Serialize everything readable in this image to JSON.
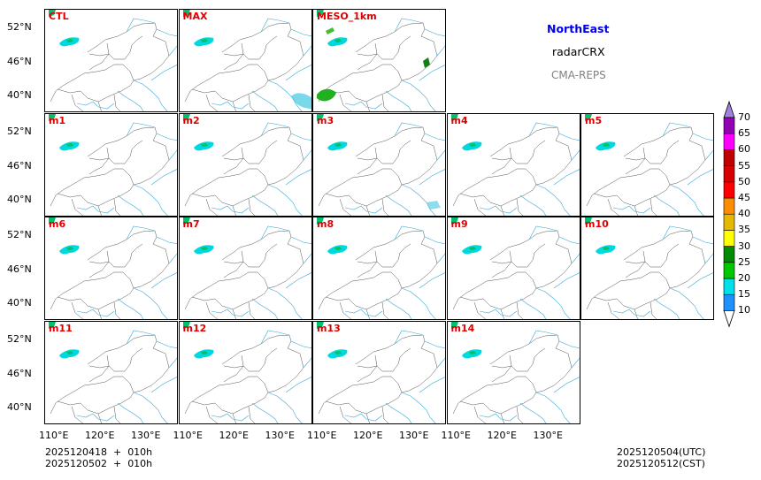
{
  "legend_box": {
    "region": "NorthEast",
    "variable": "radarCRX",
    "model": "CMA-REPS",
    "region_color": "#0000ee",
    "model_color": "#808080"
  },
  "chart_data": {
    "type": "heatmap",
    "title": "NorthEast radarCRX CMA-REPS",
    "panels": [
      {
        "label": "CTL",
        "row": 0,
        "col": 0
      },
      {
        "label": "MAX",
        "row": 0,
        "col": 1
      },
      {
        "label": "MESO_1km",
        "row": 0,
        "col": 2
      },
      {
        "label": "m1",
        "row": 1,
        "col": 0
      },
      {
        "label": "m2",
        "row": 1,
        "col": 1
      },
      {
        "label": "m3",
        "row": 1,
        "col": 2
      },
      {
        "label": "m4",
        "row": 1,
        "col": 3
      },
      {
        "label": "m5",
        "row": 1,
        "col": 4
      },
      {
        "label": "m6",
        "row": 2,
        "col": 0
      },
      {
        "label": "m7",
        "row": 2,
        "col": 1
      },
      {
        "label": "m8",
        "row": 2,
        "col": 2
      },
      {
        "label": "m9",
        "row": 2,
        "col": 3
      },
      {
        "label": "m10",
        "row": 2,
        "col": 4
      },
      {
        "label": "m11",
        "row": 3,
        "col": 0
      },
      {
        "label": "m12",
        "row": 3,
        "col": 1
      },
      {
        "label": "m13",
        "row": 3,
        "col": 2
      },
      {
        "label": "m14",
        "row": 3,
        "col": 3
      }
    ],
    "ytick_labels": [
      "52°N",
      "46°N",
      "40°N"
    ],
    "xtick_labels": [
      "110°E",
      "120°E",
      "130°E"
    ],
    "colorbar": {
      "levels": [
        "10",
        "15",
        "20",
        "25",
        "30",
        "35",
        "40",
        "45",
        "50",
        "55",
        "60",
        "65",
        "70"
      ],
      "colors": [
        "#1e90ff",
        "#00e0e8",
        "#00c800",
        "#008a00",
        "#ffff00",
        "#e6b800",
        "#ff8c00",
        "#ff0000",
        "#d80000",
        "#c00000",
        "#ff00ff",
        "#9400b4"
      ],
      "over_color": "#a080e0",
      "under_color": "#ffffff"
    }
  },
  "footer": {
    "init_utc": "2025120418  +  010h",
    "init_cst": "2025120502  +  010h",
    "valid_utc": "2025120504(UTC)",
    "valid_cst": "2025120512(CST)"
  }
}
